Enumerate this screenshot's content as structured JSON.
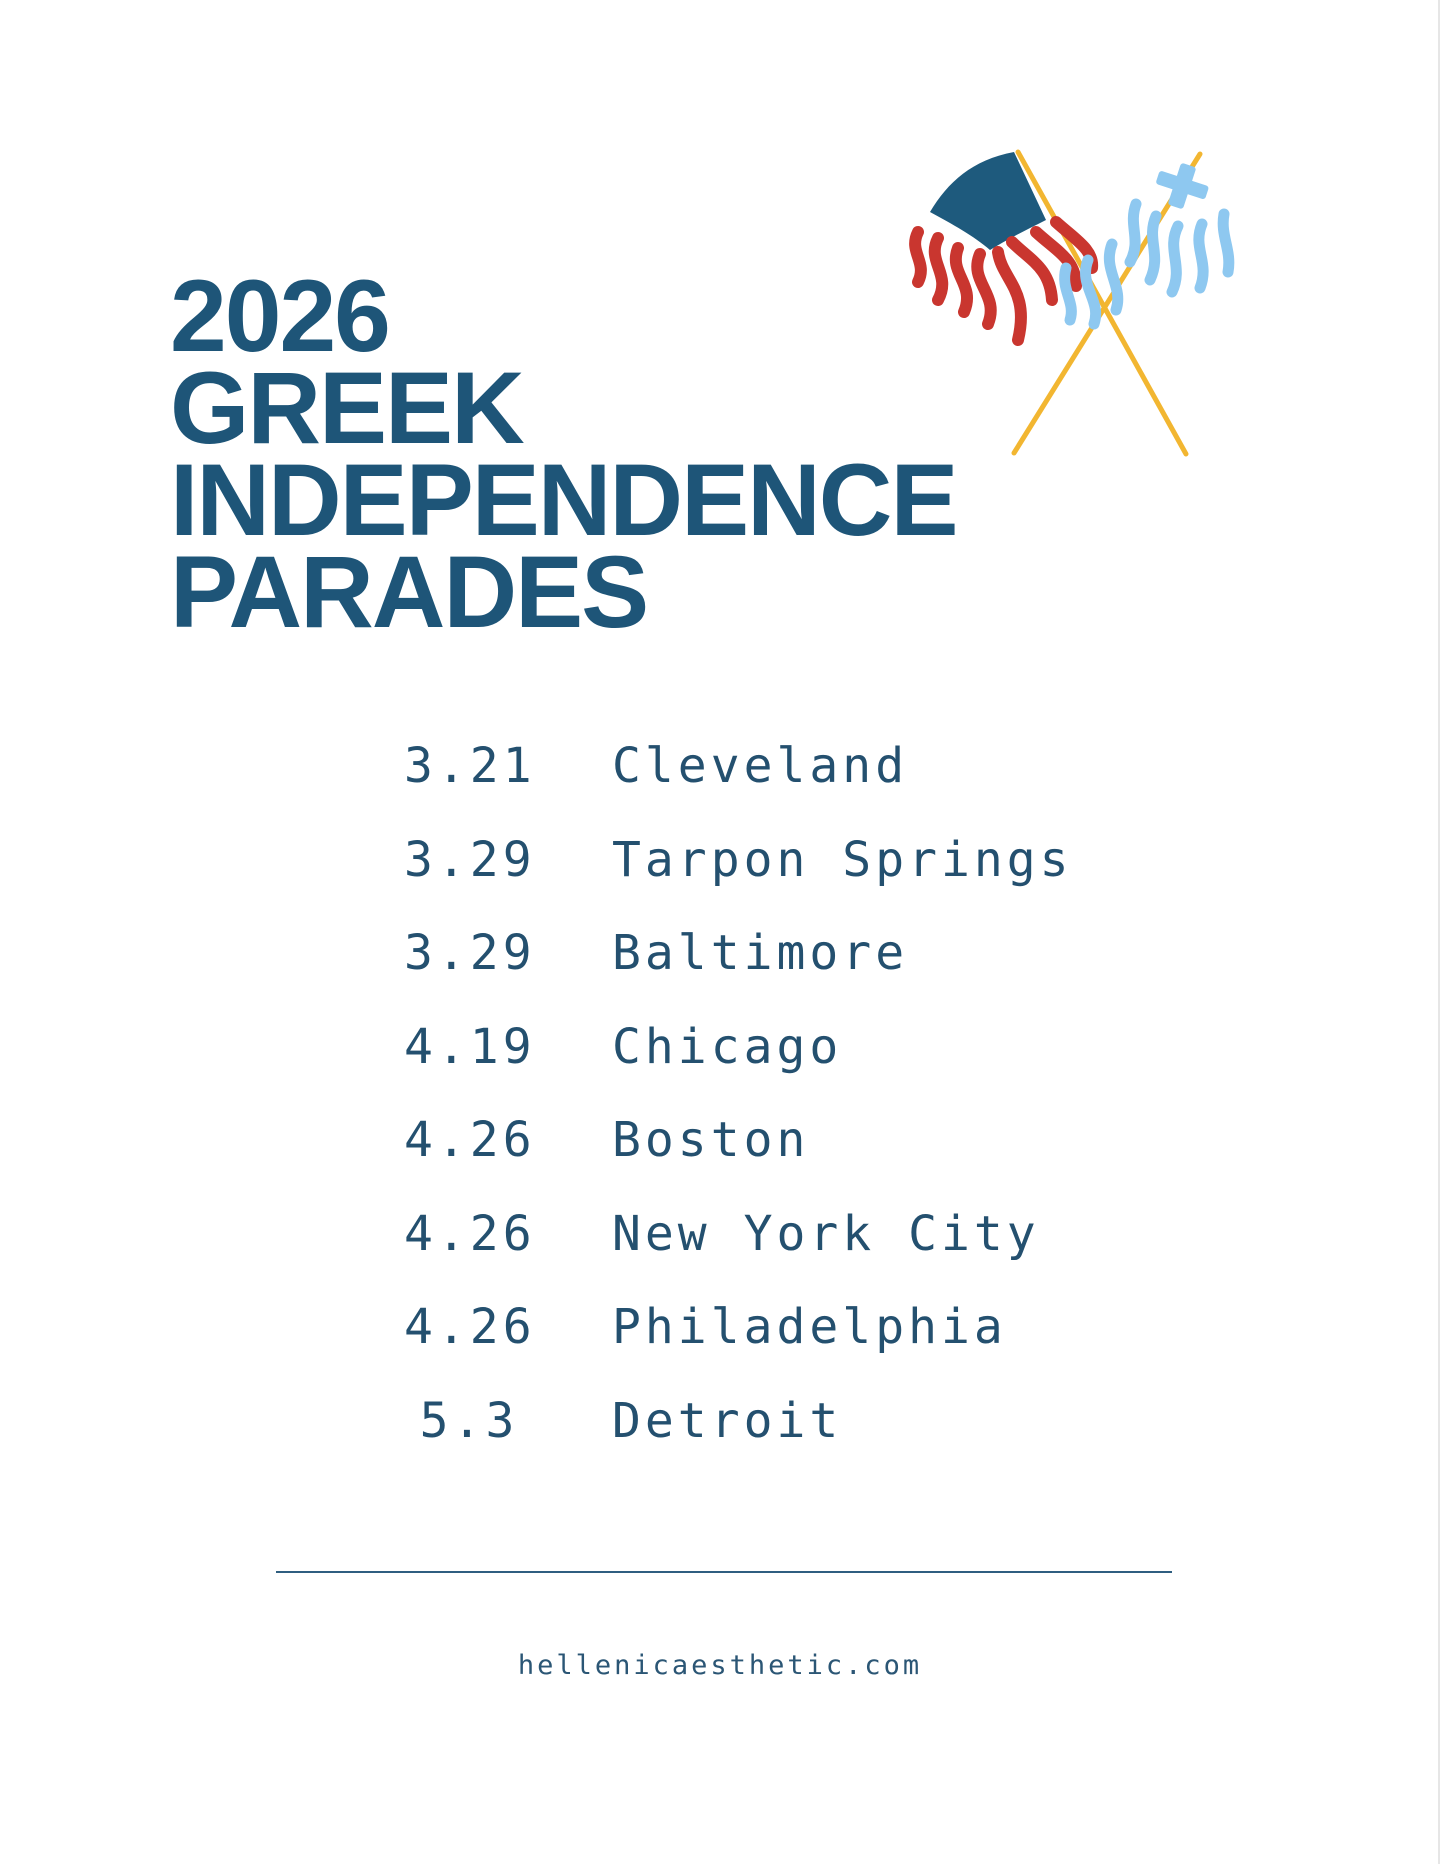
{
  "title": {
    "line1": "2026",
    "line2": "GREEK",
    "line3": "INDEPENDENCE",
    "line4": "PARADES"
  },
  "illustration": {
    "icon": "crossed-us-greek-flags-icon",
    "colors": {
      "us_blue": "#1e5a7d",
      "us_red": "#c9362f",
      "greek_blue": "#8ec8f0",
      "pole": "#f2b631"
    }
  },
  "parades": [
    {
      "date": "3.21",
      "city": "Cleveland"
    },
    {
      "date": "3.29",
      "city": "Tarpon Springs"
    },
    {
      "date": "3.29",
      "city": "Baltimore"
    },
    {
      "date": "4.19",
      "city": "Chicago"
    },
    {
      "date": "4.26",
      "city": "Boston"
    },
    {
      "date": "4.26",
      "city": "New York City"
    },
    {
      "date": "4.26",
      "city": "Philadelphia"
    },
    {
      "date": "5.3",
      "city": "Detroit"
    }
  ],
  "footer": {
    "website": "hellenicaesthetic.com"
  },
  "colors": {
    "title": "#1e5578",
    "text": "#24506f"
  }
}
